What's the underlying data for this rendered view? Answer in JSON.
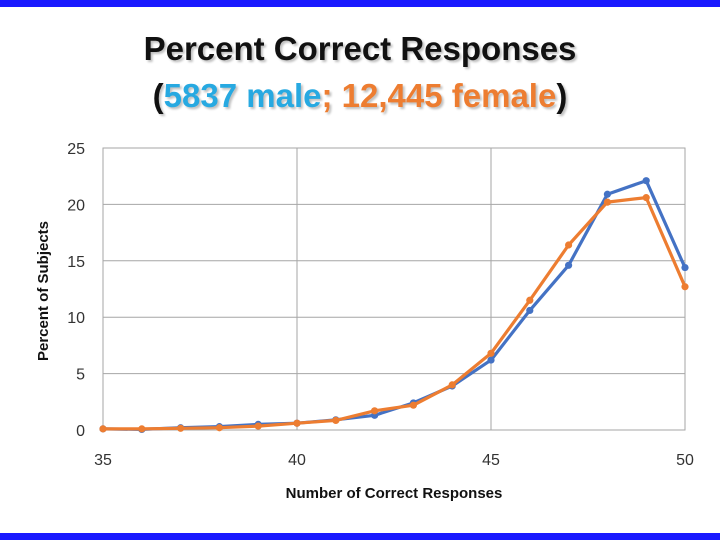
{
  "title": {
    "line1": "Percent Correct Responses",
    "open_paren": "(",
    "male_label": "5837 male",
    "separator": "; ",
    "female_label": "12,445 female",
    "close_paren": ")"
  },
  "colors": {
    "male": "#4472c4",
    "female": "#ed7d31",
    "male_title": "#27a9e1",
    "female_title": "#ed7d31",
    "frame": "#1a1aff"
  },
  "chart_data": {
    "type": "line",
    "title": "Percent Correct Responses",
    "subtitle": "(5837 male; 12,445 female)",
    "xlabel": "Number of Correct Responses",
    "ylabel": "Percent of Subjects",
    "x": [
      35,
      36,
      37,
      38,
      39,
      40,
      41,
      42,
      43,
      44,
      45,
      46,
      47,
      48,
      49,
      50
    ],
    "xlim": [
      35,
      50
    ],
    "ylim": [
      0,
      25
    ],
    "xticks": [
      35,
      40,
      45,
      50
    ],
    "yticks": [
      0,
      5,
      10,
      15,
      20,
      25
    ],
    "grid": true,
    "legend": "none",
    "series": [
      {
        "name": "5837 male",
        "values": [
          0.1,
          0.05,
          0.2,
          0.3,
          0.5,
          0.6,
          0.9,
          1.3,
          2.4,
          3.9,
          6.2,
          10.6,
          14.6,
          20.9,
          22.1,
          14.4
        ]
      },
      {
        "name": "12,445 female",
        "values": [
          0.1,
          0.1,
          0.15,
          0.2,
          0.35,
          0.6,
          0.85,
          1.7,
          2.2,
          4.0,
          6.8,
          11.5,
          16.4,
          20.2,
          20.6,
          12.7
        ]
      }
    ]
  }
}
